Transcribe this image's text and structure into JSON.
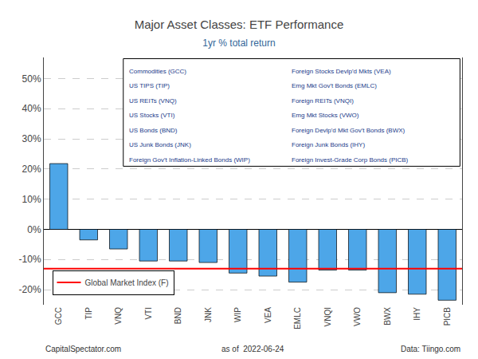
{
  "chart_data": {
    "type": "bar",
    "title": "Major Asset Classes: ETF Performance",
    "subtitle": "1yr % total return",
    "categories": [
      "GCC",
      "TIP",
      "VNQ",
      "VTI",
      "BND",
      "JNK",
      "WIP",
      "VEA",
      "EMLC",
      "VNQI",
      "VWO",
      "BWX",
      "IHY",
      "PICB"
    ],
    "values": [
      21.8,
      -3.5,
      -6.5,
      -10.5,
      -10.5,
      -11.0,
      -14.5,
      -15.5,
      -17.5,
      -13.5,
      -13.5,
      -21.0,
      -21.5,
      -23.5
    ],
    "color": "#4da6e8",
    "ylim": [
      -25,
      57
    ],
    "yticks": [
      {
        "value": -20,
        "label": "-20%"
      },
      {
        "value": -10,
        "label": "-10%"
      },
      {
        "value": 0,
        "label": "0%"
      },
      {
        "value": 10,
        "label": "10%"
      },
      {
        "value": 20,
        "label": "20%"
      },
      {
        "value": 30,
        "label": "30%"
      },
      {
        "value": 40,
        "label": "40%"
      },
      {
        "value": 50,
        "label": "50%"
      }
    ],
    "grid": true,
    "reference_line": {
      "name": "Global Market Index (F)",
      "value": -13.0,
      "color": "#ff0000"
    },
    "annotations": {
      "key_left": [
        "Commodities (GCC)",
        "US TIPS (TIP)",
        "US REITs (VNQ)",
        "US Stocks (VTI)",
        "US Bonds (BND)",
        "US Junk Bonds (JNK)",
        "Foreign Gov't Inflation-Linked Bonds (WIP)"
      ],
      "key_right": [
        "Foreign Stocks Devlp'd Mkts (VEA)",
        "Emg Mkt Gov't Bonds (EMLC)",
        "Foreign REITs (VNQI)",
        "Emg Mkt Stocks (VWO)",
        "Foreign Devlp'd Mkt Gov't Bonds (BWX)",
        "Foreign Junk Bonds (IHY)",
        "Foreign Invest-Grade Corp Bonds (PICB)"
      ],
      "footer": [
        "CapitalSpectator.com",
        "as of  2022-06-24",
        "Data: Tiingo.com"
      ]
    }
  }
}
